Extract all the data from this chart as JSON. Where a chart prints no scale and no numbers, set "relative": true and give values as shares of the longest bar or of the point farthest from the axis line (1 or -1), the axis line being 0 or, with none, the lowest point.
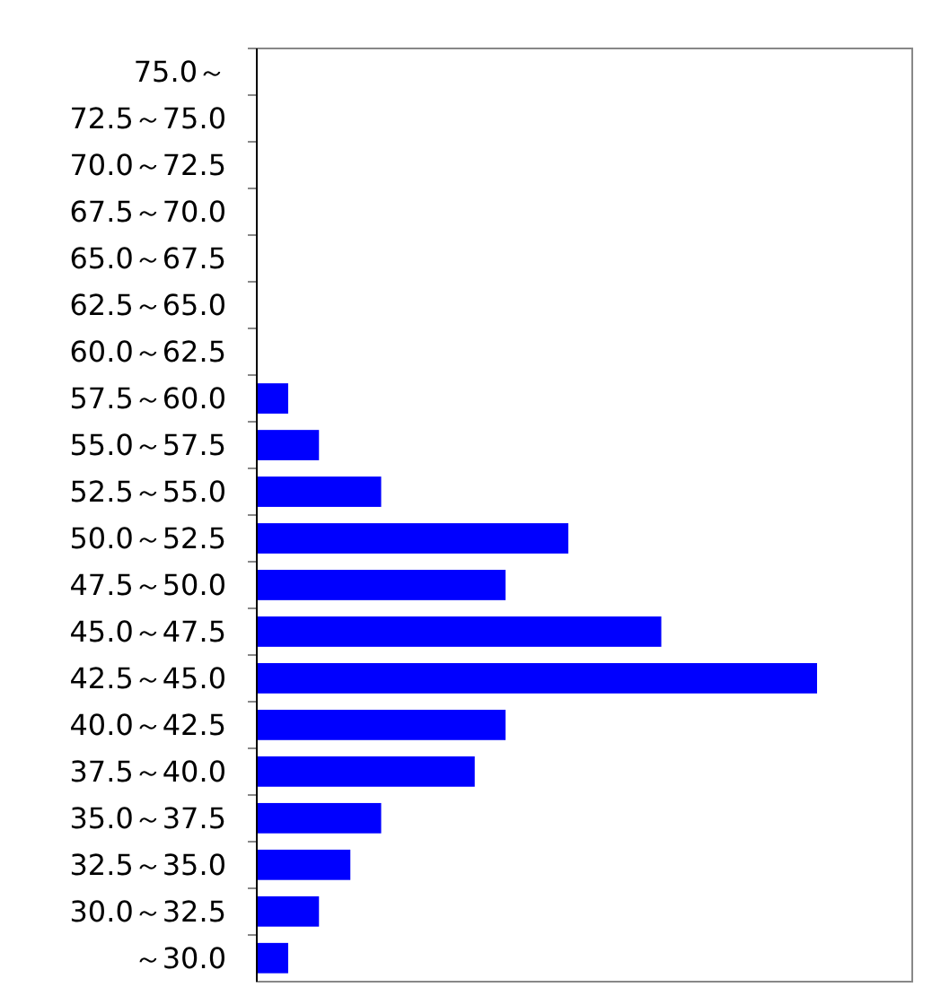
{
  "chart_data": {
    "type": "bar",
    "orientation": "horizontal",
    "relative": true,
    "color": "#0000ff",
    "categories": [
      "75.0～",
      "72.5～75.0",
      "70.0～72.5",
      "67.5～70.0",
      "65.0～67.5",
      "62.5～65.0",
      "60.0～62.5",
      "57.5～60.0",
      "55.0～57.5",
      "52.5～55.0",
      "50.0～52.5",
      "47.5～50.0",
      "45.0～47.5",
      "42.5～45.0",
      "40.0～42.5",
      "37.5～40.0",
      "35.0～37.5",
      "32.5～35.0",
      "30.0～32.5",
      "～30.0"
    ],
    "values": [
      0,
      0,
      0,
      0,
      0,
      0,
      0,
      0.056,
      0.111,
      0.222,
      0.556,
      0.444,
      0.722,
      1,
      0.444,
      0.389,
      0.222,
      0.167,
      0.111,
      0.056
    ]
  }
}
